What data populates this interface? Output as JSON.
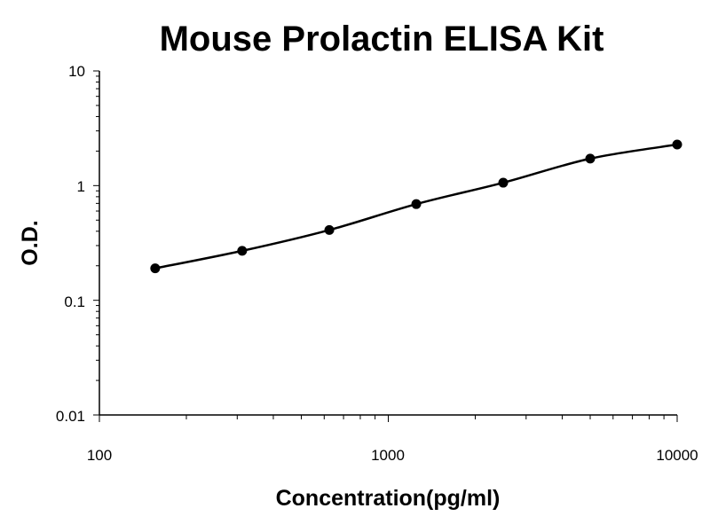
{
  "chart_data": {
    "type": "line",
    "title": "Mouse Prolactin ELISA Kit",
    "xlabel": "Concentration(pg/ml)",
    "ylabel": "O.D.",
    "x_scale": "log",
    "y_scale": "log",
    "xlim": [
      100,
      10000
    ],
    "ylim": [
      0.01,
      10
    ],
    "x_ticks": [
      "100",
      "1000",
      "10000"
    ],
    "y_ticks": [
      "10",
      "1",
      "0.1",
      "0.01"
    ],
    "grid": false,
    "legend": "none",
    "line_color": "#000000",
    "series": [
      {
        "x": [
          156,
          312,
          625,
          1250,
          2500,
          5000,
          10000
        ],
        "y": [
          0.19,
          0.27,
          0.41,
          0.69,
          1.06,
          1.72,
          2.28
        ]
      }
    ]
  }
}
